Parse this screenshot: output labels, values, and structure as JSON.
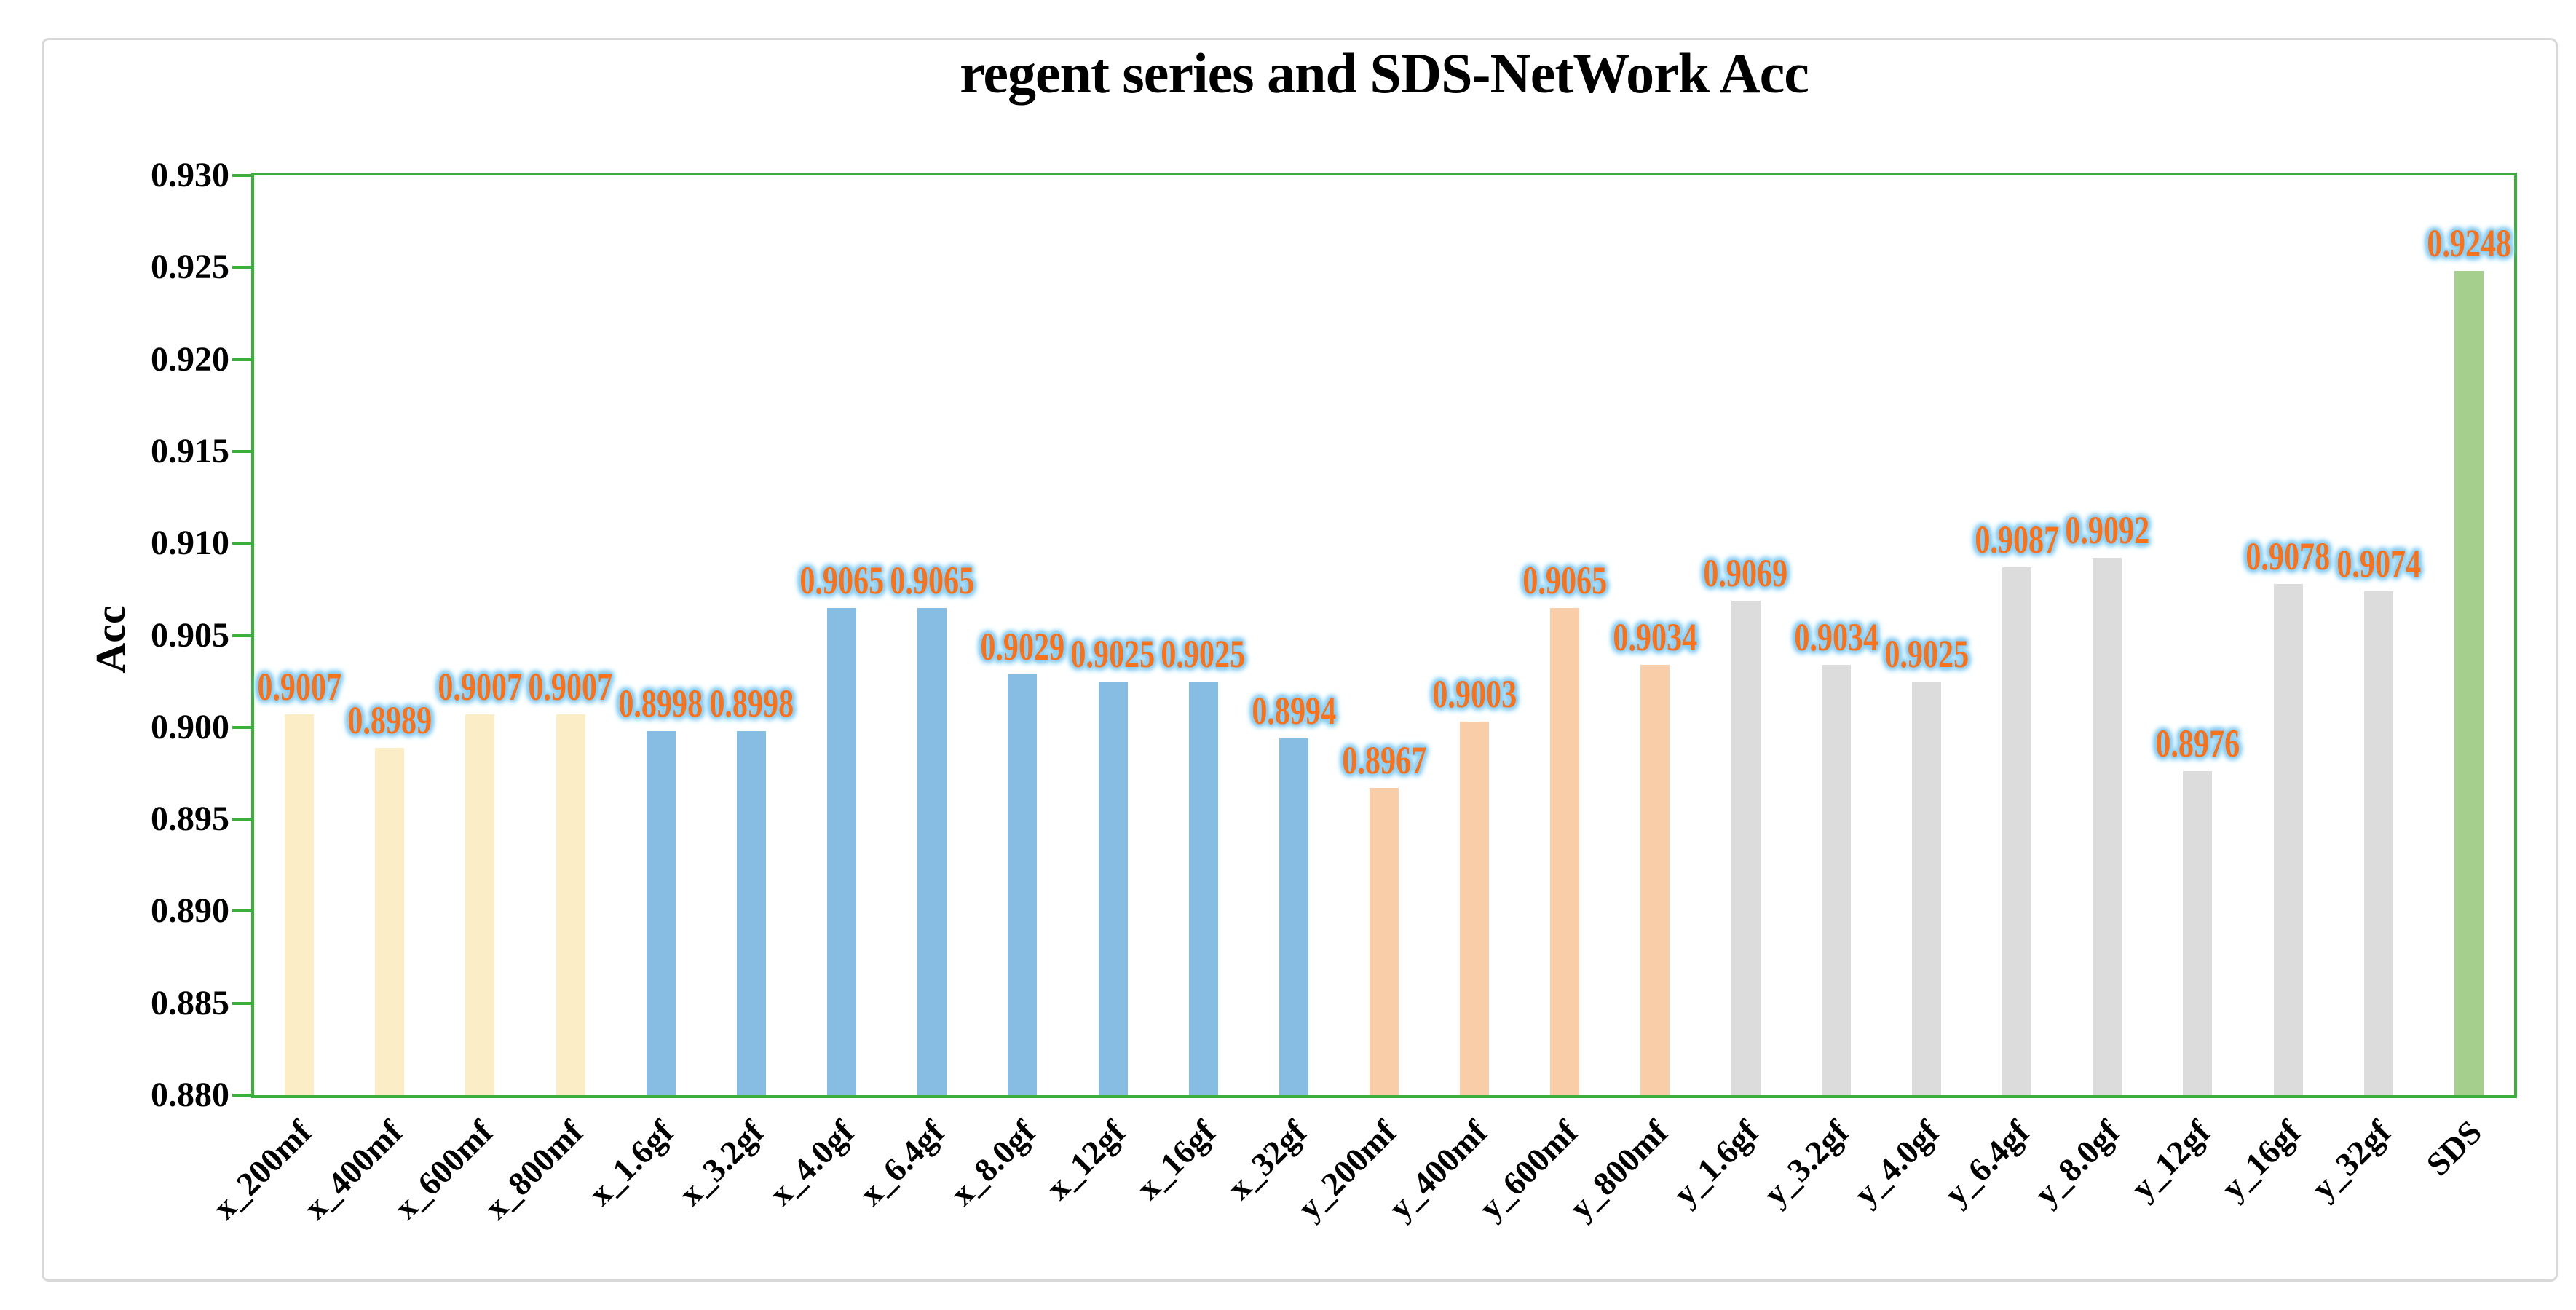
{
  "chart": {
    "title": "regent series and SDS-NetWork Acc",
    "y_label": "Acc"
  },
  "chart_data": {
    "type": "bar",
    "title": "regent series and SDS-NetWork Acc",
    "xlabel": "",
    "ylabel": "Acc",
    "ylim": [
      0.88,
      0.93
    ],
    "ytick_step": 0.005,
    "ytick_labels": [
      "0.930",
      "0.925",
      "0.920",
      "0.915",
      "0.910",
      "0.905",
      "0.900",
      "0.895",
      "0.890",
      "0.885",
      "0.880"
    ],
    "grid": false,
    "legend": false,
    "categories": [
      "x_200mf",
      "x_400mf",
      "x_600mf",
      "x_800mf",
      "x_1.6gf",
      "x_3.2gf",
      "x_4.0gf",
      "x_6.4gf",
      "x_8.0gf",
      "x_12gf",
      "x_16gf",
      "x_32gf",
      "y_200mf",
      "y_400mf",
      "y_600mf",
      "y_800mf",
      "y_1.6gf",
      "y_3.2gf",
      "y_4.0gf",
      "y_6.4gf",
      "y_8.0gf",
      "y_12gf",
      "y_16gf",
      "y_32gf",
      "SDS"
    ],
    "values": [
      0.9007,
      0.8989,
      0.9007,
      0.9007,
      0.8998,
      0.8998,
      0.9065,
      0.9065,
      0.9029,
      0.9025,
      0.9025,
      0.8994,
      0.8967,
      0.9003,
      0.9065,
      0.9034,
      0.9069,
      0.9034,
      0.9025,
      0.9087,
      0.9092,
      0.8976,
      0.9078,
      0.9074,
      0.9248
    ],
    "value_labels": [
      "0.9007",
      "0.8989",
      "0.9007",
      "0.9007",
      "0.8998",
      "0.8998",
      "0.9065",
      "0.9065",
      "0.9029",
      "0.9025",
      "0.9025",
      "0.8994",
      "0.8967",
      "0.9003",
      "0.9065",
      "0.9034",
      "0.9069",
      "0.9034",
      "0.9025",
      "0.9087",
      "0.9092",
      "0.8976",
      "0.9078",
      "0.9074",
      "0.9248"
    ],
    "bar_colors": [
      "#fbedc6",
      "#fbedc6",
      "#fbedc6",
      "#fbedc6",
      "#87bde3",
      "#87bde3",
      "#87bde3",
      "#87bde3",
      "#87bde3",
      "#87bde3",
      "#87bde3",
      "#87bde3",
      "#facda9",
      "#facda9",
      "#facda9",
      "#facda9",
      "#dcdcdc",
      "#dcdcdc",
      "#dcdcdc",
      "#dcdcdc",
      "#dcdcdc",
      "#dcdcdc",
      "#dcdcdc",
      "#dcdcdc",
      "#a5cf8d"
    ],
    "colors": {
      "axis_border": "#3bae3b",
      "tick_mark": "#3bae3b",
      "value_label": "#f5731e",
      "value_label_halo": "#8ecdf1",
      "axis_text": "#000000",
      "frame_border": "#d8d8d8",
      "background": "#ffffff"
    }
  }
}
